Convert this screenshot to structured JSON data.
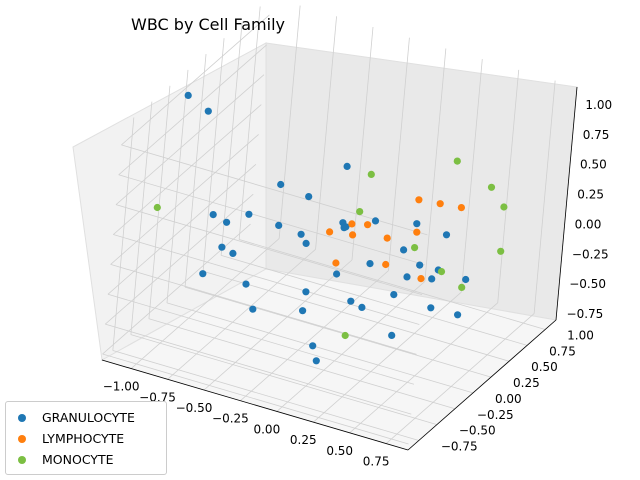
{
  "chart_data": {
    "type": "scatter",
    "title": "WBC by Cell Family",
    "xlabel": "",
    "ylabel": "",
    "zlabel": "",
    "xlim": [
      -1.2,
      0.9
    ],
    "ylim": [
      -0.9,
      1.15
    ],
    "zlim": [
      -0.8,
      1.15
    ],
    "x_ticks": [
      "−1.00",
      "−0.75",
      "−0.50",
      "−0.25",
      "0.00",
      "0.25",
      "0.50",
      "0.75"
    ],
    "y_ticks": [
      "−0.75",
      "−0.50",
      "−0.25",
      "0.00",
      "0.25",
      "0.50",
      "0.75",
      "1.00"
    ],
    "z_ticks": [
      "−0.75",
      "−0.50",
      "−0.25",
      "0.00",
      "0.25",
      "0.50",
      "0.75",
      "1.00"
    ],
    "grid": true,
    "legend_position": "bottom-left",
    "series": [
      {
        "name": "GRANULOCYTE",
        "color": "#1f77b4",
        "points": [
          [
            -1.05,
            -0.3,
            1.15
          ],
          [
            -0.95,
            -0.2,
            1.0
          ],
          [
            -0.9,
            -0.1,
            0.1
          ],
          [
            -0.85,
            0.0,
            0.0
          ],
          [
            -0.8,
            -0.4,
            -0.2
          ],
          [
            -0.75,
            0.1,
            0.05
          ],
          [
            -0.7,
            -0.2,
            -0.1
          ],
          [
            -0.6,
            0.2,
            0.3
          ],
          [
            -0.55,
            -0.3,
            -0.25
          ],
          [
            -0.5,
            0.0,
            0.1
          ],
          [
            -0.45,
            0.3,
            0.2
          ],
          [
            -0.4,
            -0.5,
            -0.3
          ],
          [
            -0.35,
            0.1,
            -0.05
          ],
          [
            -0.3,
            -0.1,
            0.15
          ],
          [
            -0.25,
            0.4,
            0.0
          ],
          [
            -0.2,
            -0.2,
            -0.4
          ],
          [
            -0.15,
            0.2,
            0.1
          ],
          [
            -0.1,
            -0.4,
            -0.1
          ],
          [
            -0.05,
            0.0,
            0.25
          ],
          [
            0.0,
            0.3,
            -0.2
          ],
          [
            0.05,
            -0.3,
            0.05
          ],
          [
            0.1,
            0.1,
            0.3
          ],
          [
            0.15,
            -0.1,
            -0.3
          ],
          [
            0.2,
            0.5,
            0.1
          ],
          [
            0.25,
            -0.5,
            0.0
          ],
          [
            0.3,
            0.2,
            -0.15
          ],
          [
            0.35,
            0.0,
            0.2
          ],
          [
            0.4,
            -0.2,
            -0.05
          ],
          [
            0.45,
            0.4,
            0.15
          ],
          [
            0.5,
            -0.4,
            -0.25
          ],
          [
            0.55,
            0.1,
            0.05
          ],
          [
            0.6,
            -0.1,
            0.1
          ],
          [
            0.65,
            0.3,
            -0.1
          ],
          [
            0.7,
            -0.3,
            0.0
          ],
          [
            0.75,
            0.0,
            -0.2
          ],
          [
            -0.2,
            0.0,
            -0.8
          ],
          [
            0.1,
            -0.6,
            -0.5
          ],
          [
            -0.3,
            0.5,
            0.4
          ],
          [
            0.2,
            0.6,
            -0.3
          ],
          [
            -0.6,
            -0.6,
            0.2
          ]
        ]
      },
      {
        "name": "LYMPHOCYTE",
        "color": "#ff7f0e",
        "points": [
          [
            -0.2,
            0.1,
            0.1
          ],
          [
            -0.1,
            0.2,
            0.15
          ],
          [
            0.0,
            0.0,
            0.2
          ],
          [
            0.1,
            0.3,
            0.05
          ],
          [
            0.2,
            0.5,
            0.3
          ],
          [
            0.3,
            0.6,
            0.25
          ],
          [
            0.25,
            0.4,
            0.1
          ],
          [
            -0.05,
            -0.1,
            0.0
          ],
          [
            0.15,
            0.2,
            -0.1
          ],
          [
            0.4,
            0.7,
            0.2
          ],
          [
            0.35,
            0.3,
            -0.2
          ],
          [
            0.05,
            0.1,
            0.25
          ]
        ]
      },
      {
        "name": "MONOCYTE",
        "color": "#7cbf43",
        "points": [
          [
            -1.1,
            -0.5,
            0.3
          ],
          [
            0.0,
            0.2,
            0.6
          ],
          [
            0.3,
            0.8,
            0.5
          ],
          [
            0.5,
            0.9,
            0.3
          ],
          [
            0.6,
            0.9,
            -0.2
          ],
          [
            0.55,
            1.0,
            0.1
          ],
          [
            0.2,
            0.5,
            -0.1
          ],
          [
            0.1,
            -0.2,
            -0.5
          ],
          [
            0.35,
            0.6,
            -0.3
          ],
          [
            0.45,
            0.7,
            -0.45
          ],
          [
            -0.1,
            0.3,
            0.2
          ]
        ]
      }
    ]
  }
}
